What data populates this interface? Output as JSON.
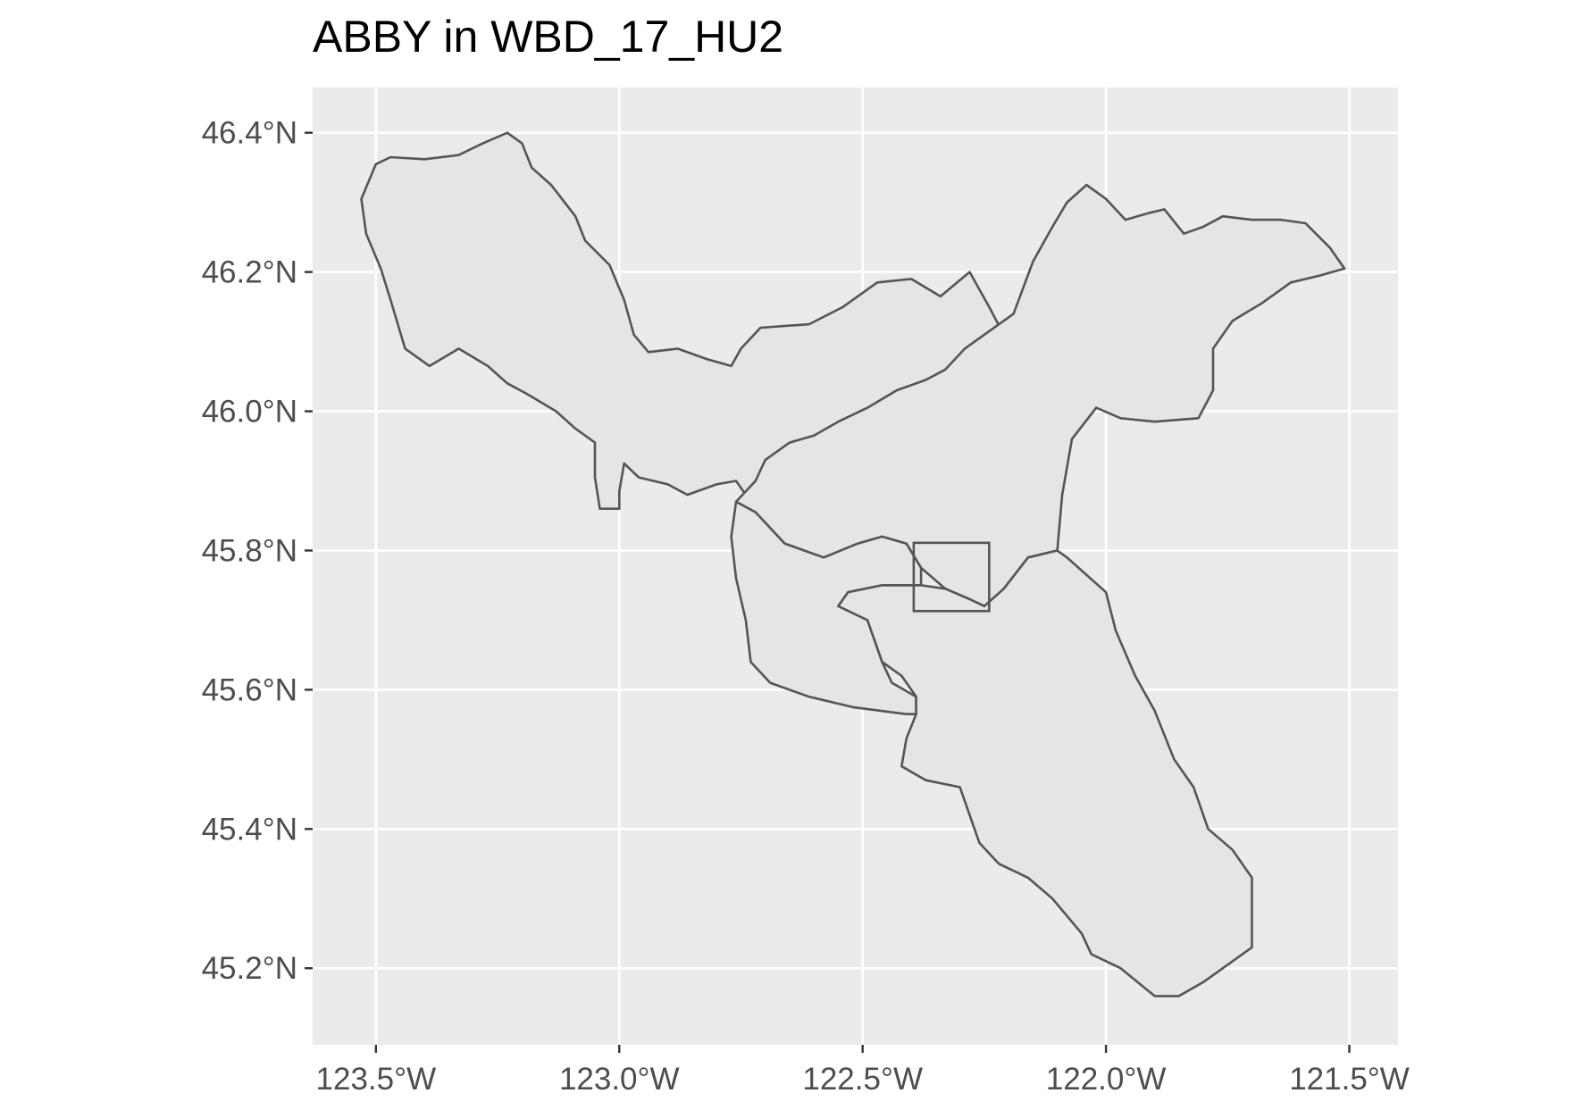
{
  "title": "ABBY in WBD_17_HU2",
  "colors": {
    "panel_background": "#ebebeb",
    "grid": "#ffffff",
    "polygon_fill": "#e5e5e5",
    "polygon_stroke": "#555555",
    "tick_text": "#4d4d4d",
    "title_text": "#000000"
  },
  "chart_data": {
    "type": "map",
    "title": "ABBY in WBD_17_HU2",
    "xlabel": "",
    "ylabel": "",
    "grid": true,
    "legend": "none",
    "x_ticks": [
      {
        "value": -123.5,
        "label": "123.5°W"
      },
      {
        "value": -123.0,
        "label": "123.0°W"
      },
      {
        "value": -122.5,
        "label": "122.5°W"
      },
      {
        "value": -122.0,
        "label": "122.0°W"
      },
      {
        "value": -121.5,
        "label": "121.5°W"
      }
    ],
    "y_ticks": [
      {
        "value": 46.4,
        "label": "46.4°N"
      },
      {
        "value": 46.2,
        "label": "46.2°N"
      },
      {
        "value": 46.0,
        "label": "46.0°N"
      },
      {
        "value": 45.8,
        "label": "45.8°N"
      },
      {
        "value": 45.6,
        "label": "45.6°N"
      },
      {
        "value": 45.4,
        "label": "45.4°N"
      },
      {
        "value": 45.2,
        "label": "45.2°N"
      }
    ],
    "xlim": [
      -123.63,
      -121.4
    ],
    "ylim": [
      45.09,
      46.465
    ],
    "site_box": {
      "lon_min": -122.395,
      "lon_max": -122.24,
      "lat_min": 45.713,
      "lat_max": 45.811
    },
    "watersheds": [
      {
        "id": "northwest",
        "coordinates": [
          [
            -123.53,
            46.305
          ],
          [
            -123.5,
            46.355
          ],
          [
            -123.47,
            46.365
          ],
          [
            -123.4,
            46.362
          ],
          [
            -123.33,
            46.368
          ],
          [
            -123.28,
            46.385
          ],
          [
            -123.23,
            46.4
          ],
          [
            -123.2,
            46.385
          ],
          [
            -123.18,
            46.35
          ],
          [
            -123.14,
            46.325
          ],
          [
            -123.09,
            46.28
          ],
          [
            -123.07,
            46.245
          ],
          [
            -123.02,
            46.21
          ],
          [
            -122.99,
            46.16
          ],
          [
            -122.97,
            46.11
          ],
          [
            -122.94,
            46.085
          ],
          [
            -122.88,
            46.09
          ],
          [
            -122.82,
            46.075
          ],
          [
            -122.77,
            46.065
          ],
          [
            -122.75,
            46.09
          ],
          [
            -122.71,
            46.12
          ],
          [
            -122.61,
            46.125
          ],
          [
            -122.54,
            46.15
          ],
          [
            -122.47,
            46.185
          ],
          [
            -122.4,
            46.19
          ],
          [
            -122.34,
            46.165
          ],
          [
            -122.28,
            46.2
          ],
          [
            -122.24,
            46.15
          ],
          [
            -122.21,
            46.11
          ],
          [
            -122.2,
            46.06
          ],
          [
            -122.28,
            46.03
          ],
          [
            -122.34,
            46.0
          ],
          [
            -122.42,
            45.99
          ],
          [
            -122.48,
            45.965
          ],
          [
            -122.55,
            45.95
          ],
          [
            -122.59,
            45.95
          ],
          [
            -122.63,
            45.93
          ],
          [
            -122.68,
            45.89
          ],
          [
            -122.72,
            45.86
          ],
          [
            -122.74,
            45.88
          ],
          [
            -122.76,
            45.9
          ],
          [
            -122.8,
            45.895
          ],
          [
            -122.86,
            45.88
          ],
          [
            -122.9,
            45.895
          ],
          [
            -122.96,
            45.905
          ],
          [
            -122.99,
            45.925
          ],
          [
            -123.0,
            45.885
          ],
          [
            -123.0,
            45.86
          ],
          [
            -123.04,
            45.86
          ],
          [
            -123.05,
            45.905
          ],
          [
            -123.05,
            45.955
          ],
          [
            -123.09,
            45.975
          ],
          [
            -123.13,
            46.0
          ],
          [
            -123.19,
            46.025
          ],
          [
            -123.23,
            46.04
          ],
          [
            -123.27,
            46.065
          ],
          [
            -123.33,
            46.09
          ],
          [
            -123.39,
            46.065
          ],
          [
            -123.44,
            46.09
          ],
          [
            -123.47,
            46.16
          ],
          [
            -123.49,
            46.205
          ],
          [
            -123.52,
            46.255
          ]
        ]
      },
      {
        "id": "northeast",
        "coordinates": [
          [
            -122.76,
            45.87
          ],
          [
            -122.72,
            45.855
          ],
          [
            -122.66,
            45.81
          ],
          [
            -122.58,
            45.79
          ],
          [
            -122.51,
            45.81
          ],
          [
            -122.46,
            45.82
          ],
          [
            -122.41,
            45.81
          ],
          [
            -122.38,
            45.775
          ],
          [
            -122.33,
            45.745
          ],
          [
            -122.28,
            45.73
          ],
          [
            -122.25,
            45.72
          ],
          [
            -122.21,
            45.745
          ],
          [
            -122.16,
            45.79
          ],
          [
            -122.1,
            45.8
          ],
          [
            -122.09,
            45.88
          ],
          [
            -122.07,
            45.96
          ],
          [
            -122.02,
            46.005
          ],
          [
            -121.97,
            45.99
          ],
          [
            -121.9,
            45.985
          ],
          [
            -121.81,
            45.99
          ],
          [
            -121.78,
            46.03
          ],
          [
            -121.78,
            46.09
          ],
          [
            -121.74,
            46.13
          ],
          [
            -121.68,
            46.155
          ],
          [
            -121.62,
            46.185
          ],
          [
            -121.56,
            46.195
          ],
          [
            -121.51,
            46.205
          ],
          [
            -121.54,
            46.235
          ],
          [
            -121.59,
            46.27
          ],
          [
            -121.64,
            46.275
          ],
          [
            -121.7,
            46.275
          ],
          [
            -121.76,
            46.28
          ],
          [
            -121.8,
            46.265
          ],
          [
            -121.84,
            46.255
          ],
          [
            -121.88,
            46.29
          ],
          [
            -121.91,
            46.285
          ],
          [
            -121.96,
            46.275
          ],
          [
            -122.0,
            46.305
          ],
          [
            -122.04,
            46.325
          ],
          [
            -122.08,
            46.3
          ],
          [
            -122.11,
            46.265
          ],
          [
            -122.15,
            46.215
          ],
          [
            -122.19,
            46.14
          ],
          [
            -122.24,
            46.115
          ],
          [
            -122.29,
            46.09
          ],
          [
            -122.33,
            46.06
          ],
          [
            -122.37,
            46.045
          ],
          [
            -122.43,
            46.03
          ],
          [
            -122.49,
            46.005
          ],
          [
            -122.55,
            45.985
          ],
          [
            -122.6,
            45.965
          ],
          [
            -122.65,
            45.955
          ],
          [
            -122.7,
            45.93
          ],
          [
            -122.72,
            45.9
          ]
        ]
      },
      {
        "id": "west-lower",
        "coordinates": [
          [
            -122.76,
            45.87
          ],
          [
            -122.77,
            45.82
          ],
          [
            -122.76,
            45.76
          ],
          [
            -122.74,
            45.7
          ],
          [
            -122.73,
            45.64
          ],
          [
            -122.69,
            45.61
          ],
          [
            -122.61,
            45.59
          ],
          [
            -122.52,
            45.575
          ],
          [
            -122.41,
            45.565
          ],
          [
            -122.39,
            45.565
          ],
          [
            -122.39,
            45.59
          ],
          [
            -122.44,
            45.61
          ],
          [
            -122.46,
            45.64
          ],
          [
            -122.49,
            45.7
          ],
          [
            -122.52,
            45.72
          ],
          [
            -122.55,
            45.72
          ],
          [
            -122.53,
            45.74
          ],
          [
            -122.46,
            45.75
          ],
          [
            -122.38,
            45.75
          ],
          [
            -122.38,
            45.775
          ],
          [
            -122.41,
            45.81
          ],
          [
            -122.46,
            45.82
          ],
          [
            -122.51,
            45.81
          ],
          [
            -122.58,
            45.79
          ],
          [
            -122.66,
            45.81
          ],
          [
            -122.72,
            45.855
          ]
        ]
      },
      {
        "id": "southeast",
        "coordinates": [
          [
            -122.55,
            45.72
          ],
          [
            -122.49,
            45.7
          ],
          [
            -122.46,
            45.64
          ],
          [
            -122.42,
            45.62
          ],
          [
            -122.39,
            45.59
          ],
          [
            -122.39,
            45.565
          ],
          [
            -122.41,
            45.53
          ],
          [
            -122.42,
            45.49
          ],
          [
            -122.37,
            45.47
          ],
          [
            -122.3,
            45.46
          ],
          [
            -122.28,
            45.42
          ],
          [
            -122.26,
            45.38
          ],
          [
            -122.22,
            45.35
          ],
          [
            -122.16,
            45.33
          ],
          [
            -122.11,
            45.3
          ],
          [
            -122.05,
            45.25
          ],
          [
            -122.03,
            45.22
          ],
          [
            -121.97,
            45.2
          ],
          [
            -121.9,
            45.16
          ],
          [
            -121.85,
            45.16
          ],
          [
            -121.8,
            45.18
          ],
          [
            -121.74,
            45.21
          ],
          [
            -121.7,
            45.23
          ],
          [
            -121.7,
            45.28
          ],
          [
            -121.7,
            45.33
          ],
          [
            -121.74,
            45.37
          ],
          [
            -121.79,
            45.4
          ],
          [
            -121.82,
            45.46
          ],
          [
            -121.86,
            45.5
          ],
          [
            -121.9,
            45.57
          ],
          [
            -121.94,
            45.62
          ],
          [
            -121.98,
            45.685
          ],
          [
            -122.0,
            45.74
          ],
          [
            -122.08,
            45.79
          ],
          [
            -122.1,
            45.8
          ],
          [
            -122.16,
            45.79
          ],
          [
            -122.21,
            45.745
          ],
          [
            -122.25,
            45.72
          ],
          [
            -122.28,
            45.73
          ],
          [
            -122.33,
            45.745
          ],
          [
            -122.38,
            45.75
          ],
          [
            -122.46,
            45.75
          ],
          [
            -122.53,
            45.74
          ]
        ]
      }
    ]
  }
}
